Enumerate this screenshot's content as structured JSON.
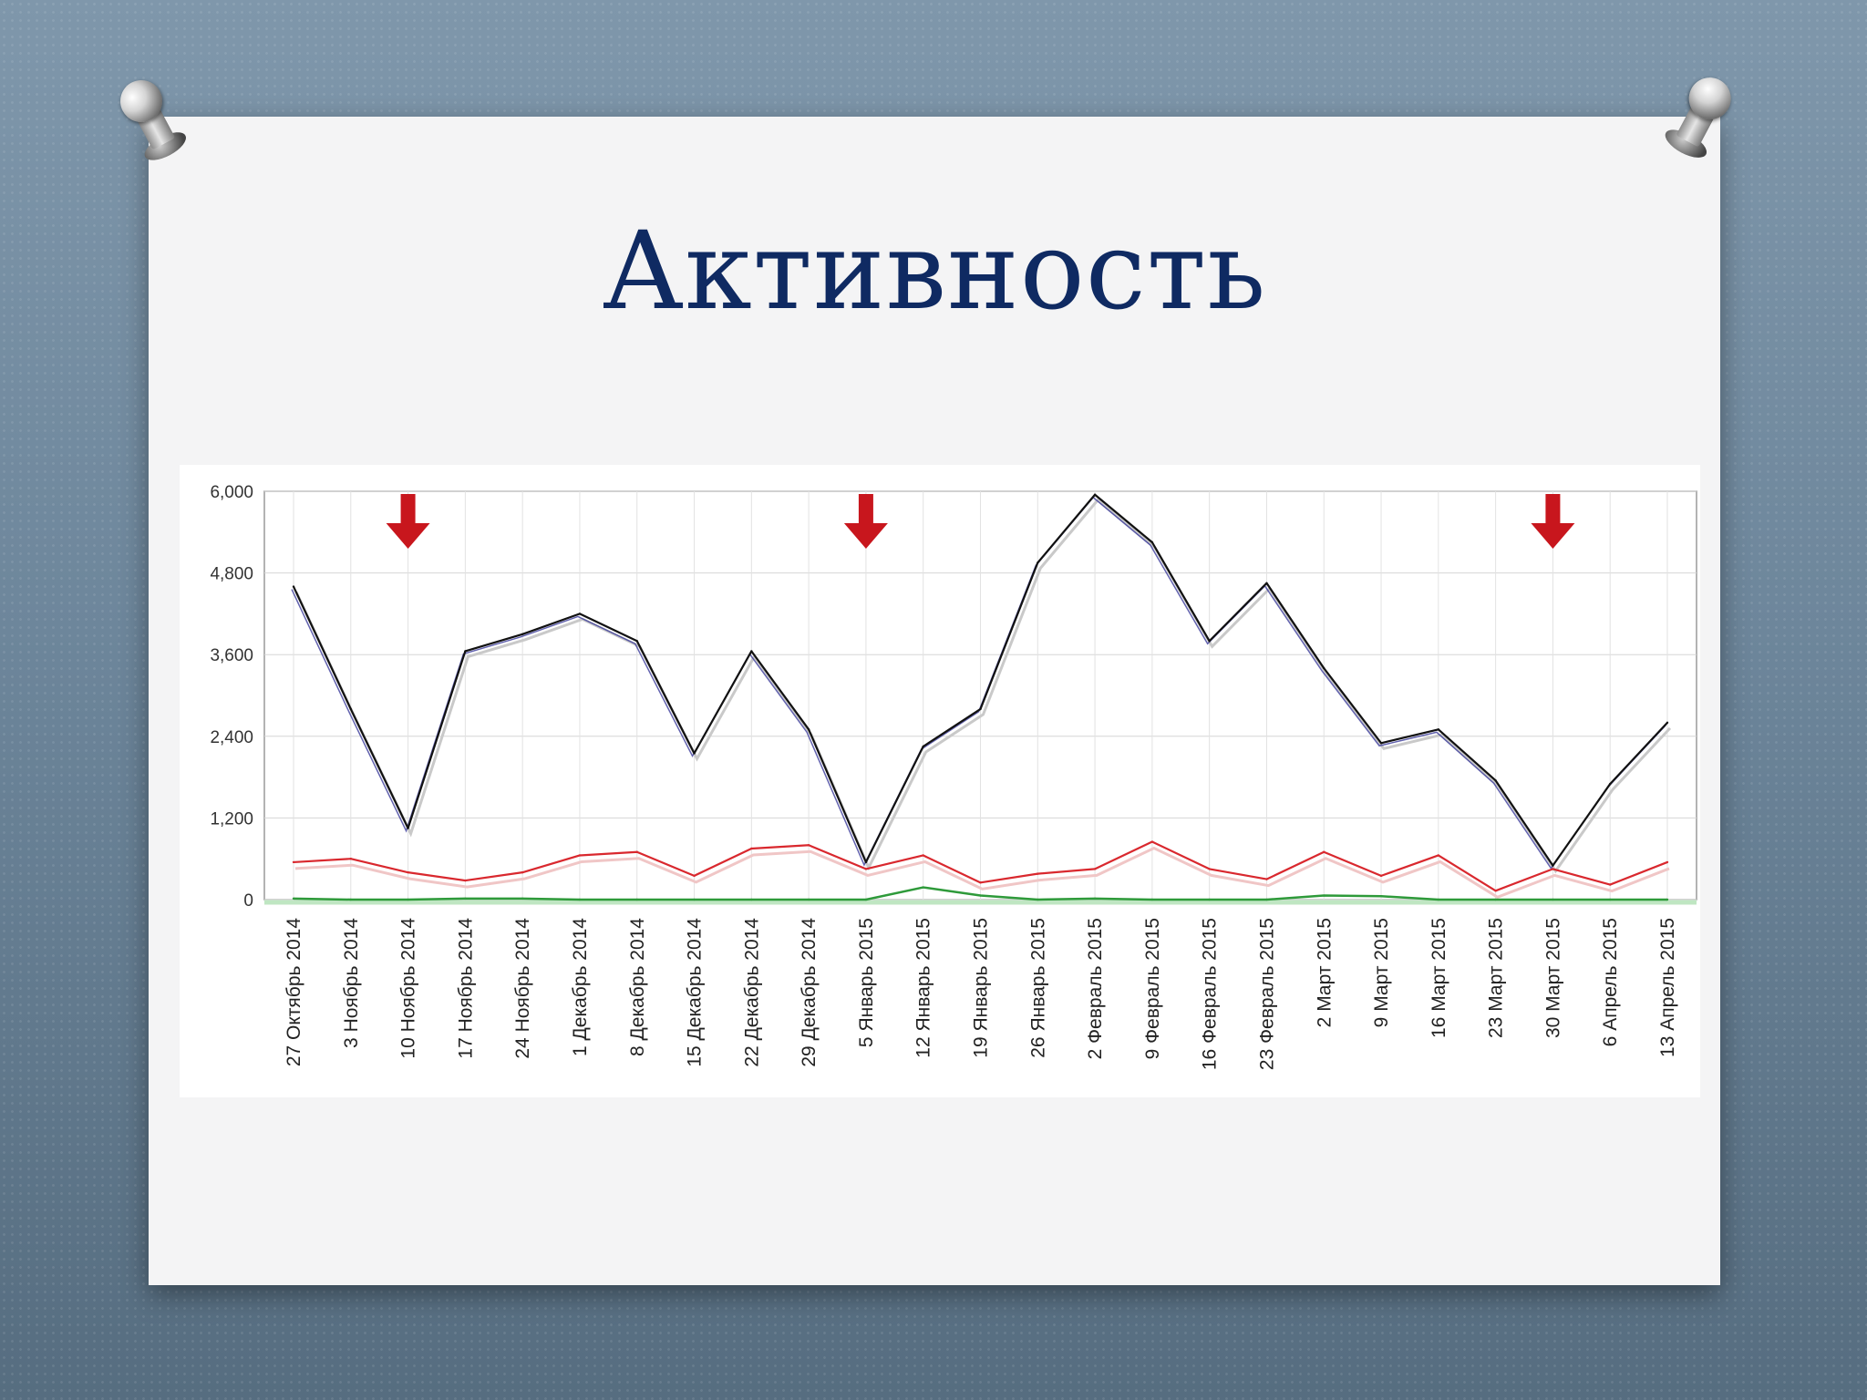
{
  "slide": {
    "title": "Активность"
  },
  "colors": {
    "background": "#6d869b",
    "card": "#f4f4f5",
    "title": "#0f2a62",
    "arrow": "#c8161d",
    "grid": "#d6d6d6"
  },
  "chart_data": {
    "type": "line",
    "title": "",
    "xlabel": "",
    "ylabel": "",
    "grid": true,
    "ylim": [
      0,
      6000
    ],
    "y_ticks": [
      "0",
      "1,200",
      "2,400",
      "3,600",
      "4,800",
      "6,000"
    ],
    "y_tick_values": [
      0,
      1200,
      2400,
      3600,
      4800,
      6000
    ],
    "categories": [
      "27 Октябрь 2014",
      "3 Ноябрь 2014",
      "10 Ноябрь 2014",
      "17 Ноябрь 2014",
      "24 Ноябрь 2014",
      "1 Декабрь 2014",
      "8 Декабрь 2014",
      "15 Декабрь 2014",
      "22 Декабрь 2014",
      "29 Декабрь 2014",
      "5 Январь 2015",
      "12 Январь 2015",
      "19 Январь 2015",
      "26 Январь 2015",
      "2 Февраль 2015",
      "9 Февраль 2015",
      "16 Февраль 2015",
      "23 Февраль 2015",
      "2 Март 2015",
      "9 Март 2015",
      "16 Март 2015",
      "23 Март 2015",
      "30 Март 2015",
      "6 Апрель 2015",
      "13 Апрель 2015"
    ],
    "series": [
      {
        "color": "#111111",
        "values": [
          4600,
          2800,
          1050,
          3650,
          3900,
          4200,
          3800,
          2150,
          3650,
          2500,
          550,
          2250,
          2800,
          4950,
          5950,
          5250,
          3800,
          4650,
          3400,
          2300,
          2500,
          1750,
          500,
          1700,
          2600
        ]
      },
      {
        "color": "#d9282e",
        "values": [
          550,
          600,
          400,
          280,
          400,
          650,
          700,
          350,
          750,
          800,
          450,
          650,
          250,
          380,
          450,
          850,
          450,
          300,
          700,
          350,
          650,
          130,
          450,
          220,
          550
        ]
      },
      {
        "color": "#2e9a3a",
        "values": [
          15,
          0,
          0,
          15,
          15,
          0,
          0,
          0,
          0,
          0,
          0,
          180,
          60,
          0,
          15,
          0,
          0,
          0,
          60,
          50,
          0,
          0,
          0,
          0,
          0
        ]
      }
    ],
    "markers": [
      {
        "type": "arrow-down",
        "at": "10 Ноябрь 2014"
      },
      {
        "type": "arrow-down",
        "at": "5 Январь 2015"
      },
      {
        "type": "arrow-down",
        "at": "30 Март 2015"
      }
    ]
  }
}
